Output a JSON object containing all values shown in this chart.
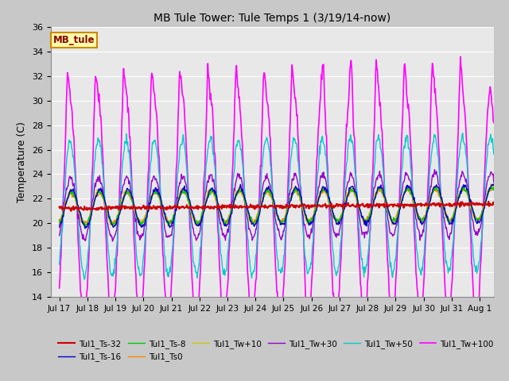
{
  "title": "MB Tule Tower: Tule Temps 1 (3/19/14-now)",
  "ylabel": "Temperature (C)",
  "ylim": [
    14,
    36
  ],
  "yticks": [
    14,
    16,
    18,
    20,
    22,
    24,
    26,
    28,
    30,
    32,
    34,
    36
  ],
  "xlim_start": -0.3,
  "xlim_end": 15.5,
  "xtick_labels": [
    "Jul 17",
    "Jul 18",
    "Jul 19",
    "Jul 20",
    "Jul 21",
    "Jul 22",
    "Jul 23",
    "Jul 24",
    "Jul 25",
    "Jul 26",
    "Jul 27",
    "Jul 28",
    "Jul 29",
    "Jul 30",
    "Jul 31",
    "Aug 1"
  ],
  "xtick_positions": [
    0,
    1,
    2,
    3,
    4,
    5,
    6,
    7,
    8,
    9,
    10,
    11,
    12,
    13,
    14,
    15
  ],
  "series": {
    "Tul1_Ts-32": {
      "color": "#cc0000",
      "lw": 1.5
    },
    "Tul1_Ts-16": {
      "color": "#0000cc",
      "lw": 1.0
    },
    "Tul1_Ts-8": {
      "color": "#00cc00",
      "lw": 1.0
    },
    "Tul1_Ts0": {
      "color": "#ff8800",
      "lw": 1.0
    },
    "Tul1_Tw+10": {
      "color": "#cccc00",
      "lw": 1.0
    },
    "Tul1_Tw+30": {
      "color": "#9900cc",
      "lw": 1.0
    },
    "Tul1_Tw+50": {
      "color": "#00cccc",
      "lw": 1.0
    },
    "Tul1_Tw+100": {
      "color": "#ff00ff",
      "lw": 1.2
    }
  },
  "legend_text": "MB_tule",
  "fig_bg": "#c8c8c8",
  "plot_bg": "#e8e8e8",
  "grid_color": "#ffffff"
}
